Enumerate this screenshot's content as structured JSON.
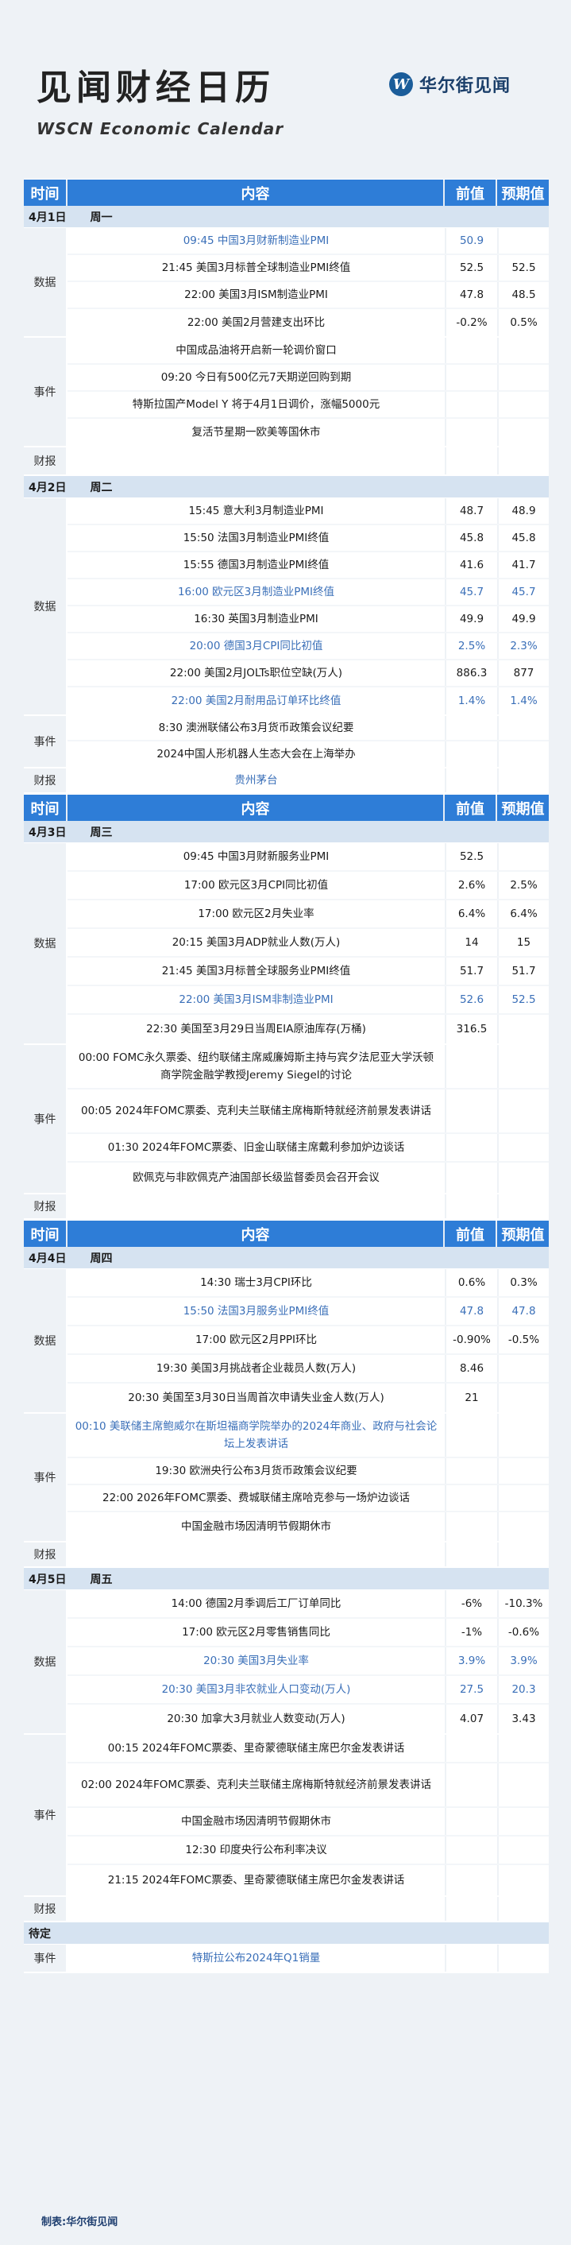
{
  "header": {
    "title": "见闻财经日历",
    "subtitle": "WSCN Economic Calendar",
    "logo_mark": "W",
    "logo_text": "华尔街见闻"
  },
  "columns": {
    "time": "时间",
    "content": "内容",
    "prev": "前值",
    "forecast": "预期值"
  },
  "sections": [
    {
      "id": "apr1",
      "has_header": true,
      "date": "4月1日",
      "weekday": "周一",
      "groups": [
        {
          "label": "数据",
          "rows": [
            {
              "h": 34,
              "text": "09:45  中国3月财新制造业PMI",
              "prev": "50.9",
              "forecast": "",
              "highlight": true
            },
            {
              "h": 34,
              "text": "21:45 美国3月标普全球制造业PMI终值",
              "prev": "52.5",
              "forecast": "52.5",
              "highlight": false
            },
            {
              "h": 34,
              "text": "22:00 美国3月ISM制造业PMI",
              "prev": "47.8",
              "forecast": "48.5",
              "highlight": false
            },
            {
              "h": 34,
              "text": "22:00 美国2月营建支出环比",
              "prev": "-0.2%",
              "forecast": "0.5%",
              "highlight": false
            }
          ]
        },
        {
          "label": "事件",
          "rows": [
            {
              "h": 34,
              "text": "中国成品油将开启新一轮调价窗口",
              "prev": "",
              "forecast": "",
              "highlight": false
            },
            {
              "h": 34,
              "text": "09:20 今日有500亿元7天期逆回购到期",
              "prev": "",
              "forecast": "",
              "highlight": false
            },
            {
              "h": 34,
              "text": "特斯拉国产Model Y 将于4月1日调价，涨幅5000元",
              "prev": "",
              "forecast": "",
              "highlight": false
            },
            {
              "h": 34,
              "text": "复活节星期一欧美等国休市",
              "prev": "",
              "forecast": "",
              "highlight": false
            }
          ]
        },
        {
          "label": "财报",
          "rows": [
            {
              "h": 34,
              "text": "",
              "prev": "",
              "forecast": "",
              "highlight": false
            }
          ]
        }
      ]
    },
    {
      "id": "apr2",
      "has_header": false,
      "date": "4月2日",
      "weekday": "周二",
      "groups": [
        {
          "label": "数据",
          "rows": [
            {
              "h": 34,
              "text": "15:45 意大利3月制造业PMI",
              "prev": "48.7",
              "forecast": "48.9",
              "highlight": false
            },
            {
              "h": 34,
              "text": "15:50 法国3月制造业PMI终值",
              "prev": "45.8",
              "forecast": "45.8",
              "highlight": false
            },
            {
              "h": 34,
              "text": "15:55 德国3月制造业PMI终值",
              "prev": "41.6",
              "forecast": "41.7",
              "highlight": false
            },
            {
              "h": 34,
              "text": "16:00 欧元区3月制造业PMI终值",
              "prev": "45.7",
              "forecast": "45.7",
              "highlight": true
            },
            {
              "h": 34,
              "text": "16:30 英国3月制造业PMI",
              "prev": "49.9",
              "forecast": "49.9",
              "highlight": false
            },
            {
              "h": 34,
              "text": "20:00 德国3月CPI同比初值",
              "prev": "2.5%",
              "forecast": "2.3%",
              "highlight": true
            },
            {
              "h": 34,
              "text": "22:00 美国2月JOLTs职位空缺(万人)",
              "prev": "886.3",
              "forecast": "877",
              "highlight": false
            },
            {
              "h": 34,
              "text": "22:00 美国2月耐用品订单环比终值",
              "prev": "1.4%",
              "forecast": "1.4%",
              "highlight": true
            }
          ]
        },
        {
          "label": "事件",
          "rows": [
            {
              "h": 32,
              "text": "8:30 澳洲联储公布3月货币政策会议纪要",
              "prev": "",
              "forecast": "",
              "highlight": false
            },
            {
              "h": 32,
              "text": "2024中国人形机器人生态大会在上海举办",
              "prev": "",
              "forecast": "",
              "highlight": false
            }
          ]
        },
        {
          "label": "财报",
          "rows": [
            {
              "h": 30,
              "text": "贵州茅台",
              "prev": "",
              "forecast": "",
              "highlight": true
            }
          ]
        }
      ]
    },
    {
      "id": "apr3",
      "has_header": true,
      "date": "4月3日",
      "weekday": "周三",
      "groups": [
        {
          "label": "数据",
          "rows": [
            {
              "h": 36,
              "text": "09:45 中国3月财新服务业PMI",
              "prev": "52.5",
              "forecast": "",
              "highlight": false
            },
            {
              "h": 36,
              "text": "17:00 欧元区3月CPI同比初值",
              "prev": "2.6%",
              "forecast": "2.5%",
              "highlight": false
            },
            {
              "h": 36,
              "text": "17:00 欧元区2月失业率",
              "prev": "6.4%",
              "forecast": "6.4%",
              "highlight": false
            },
            {
              "h": 36,
              "text": "20:15 美国3月ADP就业人数(万人)",
              "prev": "14",
              "forecast": "15",
              "highlight": false
            },
            {
              "h": 36,
              "text": "21:45 美国3月标普全球服务业PMI终值",
              "prev": "51.7",
              "forecast": "51.7",
              "highlight": false
            },
            {
              "h": 36,
              "text": "22:00 美国3月ISM非制造业PMI",
              "prev": "52.6",
              "forecast": "52.5",
              "highlight": true
            },
            {
              "h": 36,
              "text": "22:30 美国至3月29日当周EIA原油库存(万桶)",
              "prev": "316.5",
              "forecast": "",
              "highlight": false
            }
          ]
        },
        {
          "label": "事件",
          "rows": [
            {
              "h": 56,
              "text": "00:00 FOMC永久票委、纽约联储主席威廉姆斯主持与宾夕法尼亚大学沃顿商学院金融学教授Jeremy Siegel的讨论",
              "prev": "",
              "forecast": "",
              "highlight": false
            },
            {
              "h": 56,
              "text": "00:05 2024年FOMC票委、克利夫兰联储主席梅斯特就经济前景发表讲话",
              "prev": "",
              "forecast": "",
              "highlight": false
            },
            {
              "h": 36,
              "text": "01:30 2024年FOMC票委、旧金山联储主席戴利参加炉边谈话",
              "prev": "",
              "forecast": "",
              "highlight": false
            },
            {
              "h": 38,
              "text": "欧佩克与非欧佩克产油国部长级监督委员会召开会议",
              "prev": "",
              "forecast": "",
              "highlight": false
            }
          ]
        },
        {
          "label": "财报",
          "rows": [
            {
              "h": 30,
              "text": "",
              "prev": "",
              "forecast": "",
              "highlight": false
            }
          ]
        }
      ]
    },
    {
      "id": "apr4",
      "has_header": true,
      "date": "4月4日",
      "weekday": "周四",
      "groups": [
        {
          "label": "数据",
          "rows": [
            {
              "h": 36,
              "text": "14:30 瑞士3月CPI环比",
              "prev": "0.6%",
              "forecast": "0.3%",
              "highlight": false
            },
            {
              "h": 36,
              "text": "15:50 法国3月服务业PMI终值",
              "prev": "47.8",
              "forecast": "47.8",
              "highlight": true
            },
            {
              "h": 36,
              "text": "17:00 欧元区2月PPI环比",
              "prev": "-0.90%",
              "forecast": "-0.5%",
              "highlight": false
            },
            {
              "h": 36,
              "text": "19:30 美国3月挑战者企业裁员人数(万人)",
              "prev": "8.46",
              "forecast": "",
              "highlight": false
            },
            {
              "h": 36,
              "text": "20:30 美国至3月30日当周首次申请失业金人数(万人)",
              "prev": "21",
              "forecast": "",
              "highlight": false
            }
          ]
        },
        {
          "label": "事件",
          "rows": [
            {
              "h": 56,
              "text": "00:10 美联储主席鲍威尔在斯坦福商学院举办的2024年商业、政府与社会论坛上发表讲话",
              "prev": "",
              "forecast": "",
              "highlight": true
            },
            {
              "h": 34,
              "text": "19:30 欧洲央行公布3月货币政策会议纪要",
              "prev": "",
              "forecast": "",
              "highlight": false
            },
            {
              "h": 34,
              "text": "22:00 2026年FOMC票委、费城联储主席哈克参与一场炉边谈话",
              "prev": "",
              "forecast": "",
              "highlight": false
            },
            {
              "h": 36,
              "text": "中国金融市场因清明节假期休市",
              "prev": "",
              "forecast": "",
              "highlight": false
            }
          ]
        },
        {
          "label": "财报",
          "rows": [
            {
              "h": 30,
              "text": "",
              "prev": "",
              "forecast": "",
              "highlight": false
            }
          ]
        }
      ]
    },
    {
      "id": "apr5",
      "has_header": false,
      "date": "4月5日",
      "weekday": "周五",
      "groups": [
        {
          "label": "数据",
          "rows": [
            {
              "h": 36,
              "text": "14:00 德国2月季调后工厂订单同比",
              "prev": "-6%",
              "forecast": "-10.3%",
              "highlight": false
            },
            {
              "h": 36,
              "text": "17:00 欧元区2月零售销售同比",
              "prev": "-1%",
              "forecast": "-0.6%",
              "highlight": false
            },
            {
              "h": 36,
              "text": "20:30  美国3月失业率",
              "prev": "3.9%",
              "forecast": "3.9%",
              "highlight": true
            },
            {
              "h": 36,
              "text": "20:30 美国3月非农就业人口变动(万人)",
              "prev": "27.5",
              "forecast": "20.3",
              "highlight": true
            },
            {
              "h": 36,
              "text": "20:30 加拿大3月就业人数变动(万人)",
              "prev": "4.07",
              "forecast": "3.43",
              "highlight": false
            }
          ]
        },
        {
          "label": "事件",
          "rows": [
            {
              "h": 36,
              "text": "00:15 2024年FOMC票委、里奇蒙德联储主席巴尔金发表讲话",
              "prev": "",
              "forecast": "",
              "highlight": false
            },
            {
              "h": 56,
              "text": "02:00 2024年FOMC票委、克利夫兰联储主席梅斯特就经济前景发表讲话",
              "prev": "",
              "forecast": "",
              "highlight": false
            },
            {
              "h": 36,
              "text": "中国金融市场因清明节假期休市",
              "prev": "",
              "forecast": "",
              "highlight": false
            },
            {
              "h": 36,
              "text": "12:30 印度央行公布利率决议",
              "prev": "",
              "forecast": "",
              "highlight": false
            },
            {
              "h": 38,
              "text": "21:15 2024年FOMC票委、里奇蒙德联储主席巴尔金发表讲话",
              "prev": "",
              "forecast": "",
              "highlight": false
            }
          ]
        },
        {
          "label": "财报",
          "rows": [
            {
              "h": 30,
              "text": "",
              "prev": "",
              "forecast": "",
              "highlight": false
            }
          ]
        }
      ]
    },
    {
      "id": "pending",
      "has_header": false,
      "date": "待定",
      "weekday": "",
      "groups": [
        {
          "label": "事件",
          "rows": [
            {
              "h": 34,
              "text": "特斯拉公布2024年Q1销量",
              "prev": "",
              "forecast": "",
              "highlight": true
            }
          ]
        }
      ]
    }
  ],
  "footer": "制表:华尔街见闻"
}
